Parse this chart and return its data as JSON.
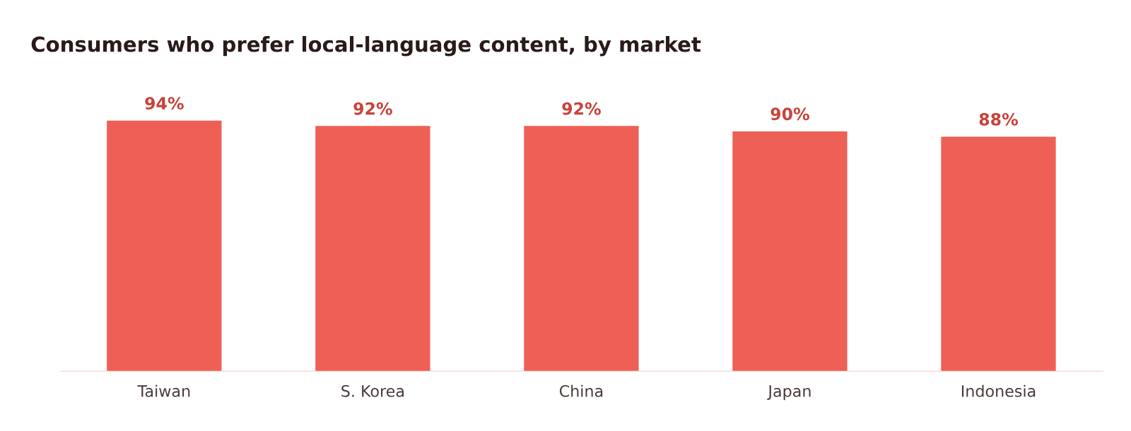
{
  "chart_data": {
    "type": "bar",
    "title": "Consumers who prefer local-language content, by market",
    "categories": [
      "Taiwan",
      "S. Korea",
      "China",
      "Japan",
      "Indonesia"
    ],
    "values": [
      94,
      92,
      92,
      90,
      88
    ],
    "value_labels": [
      "94%",
      "92%",
      "92%",
      "90%",
      "88%"
    ],
    "color": "#ee6055",
    "grid": false,
    "legend": false
  }
}
